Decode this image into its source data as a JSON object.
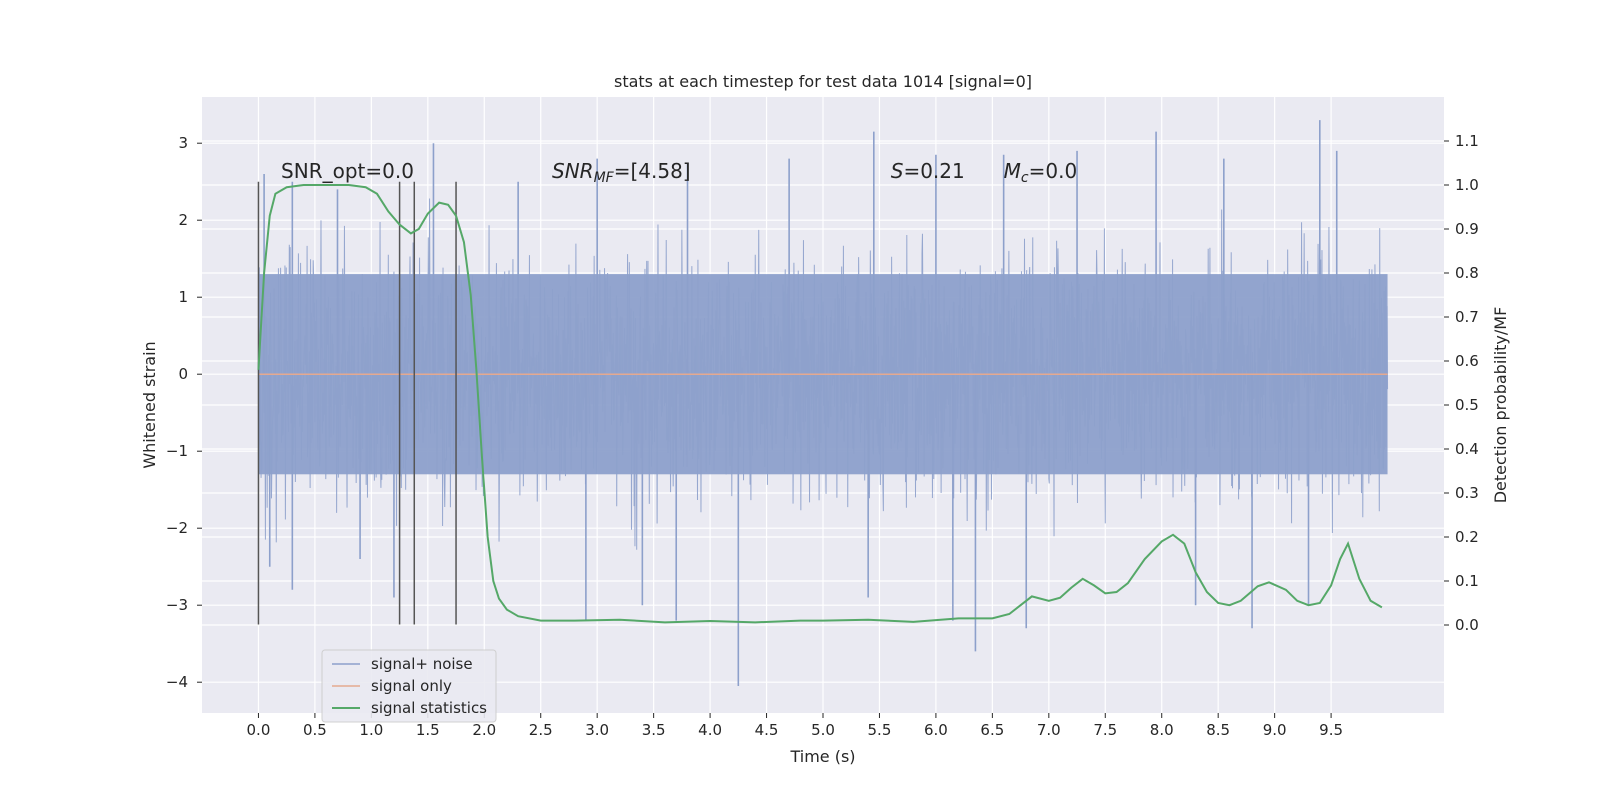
{
  "chart_data": {
    "type": "line",
    "title": "stats at each timestep for test data 1014 [signal=0]",
    "xlabel": "Time (s)",
    "ylabel": "Whitened strain",
    "ylabel_right": "Detection probability/MF",
    "xlim": [
      -0.5,
      10.5
    ],
    "ylim": [
      -4.4,
      3.6
    ],
    "ylim_right": [
      -0.2,
      1.2
    ],
    "x_ticks": [
      0.0,
      0.5,
      1.0,
      1.5,
      2.0,
      2.5,
      3.0,
      3.5,
      4.0,
      4.5,
      5.0,
      5.5,
      6.0,
      6.5,
      7.0,
      7.5,
      8.0,
      8.5,
      9.0,
      9.5
    ],
    "x_tick_labels": [
      "0.0",
      "0.5",
      "1.0",
      "1.5",
      "2.0",
      "2.5",
      "3.0",
      "3.5",
      "4.0",
      "4.5",
      "5.0",
      "5.5",
      "6.0",
      "6.5",
      "7.0",
      "7.5",
      "8.0",
      "8.5",
      "9.0",
      "9.5"
    ],
    "y_ticks": [
      3,
      2,
      1,
      0,
      -1,
      -2,
      -3,
      -4
    ],
    "y_tick_labels": [
      "3",
      "2",
      "1",
      "0",
      "−1",
      "−2",
      "−3",
      "−4"
    ],
    "y_ticks_right": [
      1.1,
      1.0,
      0.9,
      0.8,
      0.7,
      0.6,
      0.5,
      0.4,
      0.3,
      0.2,
      0.1,
      0.0
    ],
    "y_tick_labels_right": [
      "1.1",
      "1.0",
      "0.9",
      "0.8",
      "0.7",
      "0.6",
      "0.5",
      "0.4",
      "0.3",
      "0.2",
      "0.1",
      "0.0"
    ],
    "grid": true,
    "legend_position": "lower-left",
    "legend": [
      {
        "label": "signal+ noise",
        "color": "#8da0cb"
      },
      {
        "label": "signal only",
        "color": "#e5a98f"
      },
      {
        "label": "signal statistics",
        "color": "#55a868"
      }
    ],
    "annotations": [
      {
        "x": 0.2,
        "y": 2.55,
        "text": "SNR_opt=0.0"
      },
      {
        "x": 2.6,
        "y": 2.55,
        "text": "SNRMF=[4.58]",
        "math_base": "SNR",
        "math_sub": "MF",
        "math_rest": "=[4.58]"
      },
      {
        "x": 5.6,
        "y": 2.55,
        "text": "S=0.21",
        "math_base": "S",
        "math_sub": "",
        "math_rest": "=0.21"
      },
      {
        "x": 6.6,
        "y": 2.55,
        "text": "Mc=0.0",
        "math_base": "M",
        "math_sub": "c",
        "math_rest": "=0.0"
      }
    ],
    "vertical_lines": {
      "x": [
        0.0,
        1.25,
        1.38,
        1.75
      ],
      "ymin": -3.25,
      "ymax": 2.5,
      "color": "#555555"
    },
    "noise_series": {
      "name": "signal+ noise",
      "x_range": [
        0.0,
        10.0
      ],
      "core_range": [
        -1.3,
        1.3
      ],
      "spikes": [
        [
          0.05,
          2.6
        ],
        [
          0.3,
          2.5
        ],
        [
          0.7,
          2.4
        ],
        [
          1.55,
          3.0
        ],
        [
          2.3,
          2.5
        ],
        [
          3.0,
          2.8
        ],
        [
          3.8,
          2.75
        ],
        [
          4.7,
          2.8
        ],
        [
          5.45,
          3.15
        ],
        [
          6.0,
          2.85
        ],
        [
          6.6,
          2.85
        ],
        [
          7.25,
          2.9
        ],
        [
          7.95,
          3.15
        ],
        [
          8.55,
          2.8
        ],
        [
          9.4,
          3.3
        ],
        [
          9.55,
          2.9
        ],
        [
          0.1,
          -2.5
        ],
        [
          0.3,
          -2.8
        ],
        [
          0.9,
          -2.4
        ],
        [
          1.2,
          -2.9
        ],
        [
          2.9,
          -3.2
        ],
        [
          3.4,
          -3.0
        ],
        [
          3.7,
          -3.2
        ],
        [
          4.25,
          -4.05
        ],
        [
          5.4,
          -2.9
        ],
        [
          6.15,
          -3.2
        ],
        [
          6.35,
          -3.6
        ],
        [
          6.8,
          -3.3
        ],
        [
          8.3,
          -3.0
        ],
        [
          8.8,
          -3.3
        ],
        [
          9.3,
          -3.0
        ]
      ]
    },
    "signal_only": {
      "name": "signal only",
      "x": [
        0.0,
        10.0
      ],
      "y": [
        0.0,
        0.0
      ]
    },
    "statistics_series": {
      "name": "signal statistics",
      "x": [
        0.0,
        0.05,
        0.1,
        0.15,
        0.25,
        0.4,
        0.6,
        0.8,
        0.95,
        1.05,
        1.15,
        1.25,
        1.35,
        1.42,
        1.5,
        1.6,
        1.68,
        1.75,
        1.82,
        1.88,
        1.93,
        1.98,
        2.03,
        2.08,
        2.13,
        2.2,
        2.3,
        2.5,
        2.8,
        3.2,
        3.6,
        4.0,
        4.4,
        4.8,
        5.0,
        5.4,
        5.8,
        6.2,
        6.5,
        6.65,
        6.75,
        6.85,
        7.0,
        7.1,
        7.2,
        7.3,
        7.4,
        7.5,
        7.6,
        7.7,
        7.85,
        8.0,
        8.1,
        8.2,
        8.3,
        8.4,
        8.5,
        8.6,
        8.7,
        8.85,
        8.95,
        9.1,
        9.2,
        9.3,
        9.4,
        9.5,
        9.58,
        9.65,
        9.75,
        9.85,
        9.95
      ],
      "y": [
        0.58,
        0.8,
        0.93,
        0.98,
        0.995,
        1.0,
        1.0,
        1.0,
        0.995,
        0.98,
        0.94,
        0.91,
        0.89,
        0.9,
        0.935,
        0.96,
        0.955,
        0.93,
        0.87,
        0.75,
        0.58,
        0.38,
        0.2,
        0.1,
        0.06,
        0.035,
        0.02,
        0.01,
        0.01,
        0.012,
        0.006,
        0.009,
        0.006,
        0.01,
        0.01,
        0.012,
        0.007,
        0.015,
        0.015,
        0.025,
        0.045,
        0.065,
        0.055,
        0.062,
        0.085,
        0.105,
        0.09,
        0.072,
        0.075,
        0.095,
        0.15,
        0.19,
        0.205,
        0.185,
        0.12,
        0.075,
        0.05,
        0.045,
        0.055,
        0.088,
        0.097,
        0.08,
        0.055,
        0.045,
        0.05,
        0.09,
        0.15,
        0.185,
        0.105,
        0.055,
        0.04
      ]
    }
  }
}
